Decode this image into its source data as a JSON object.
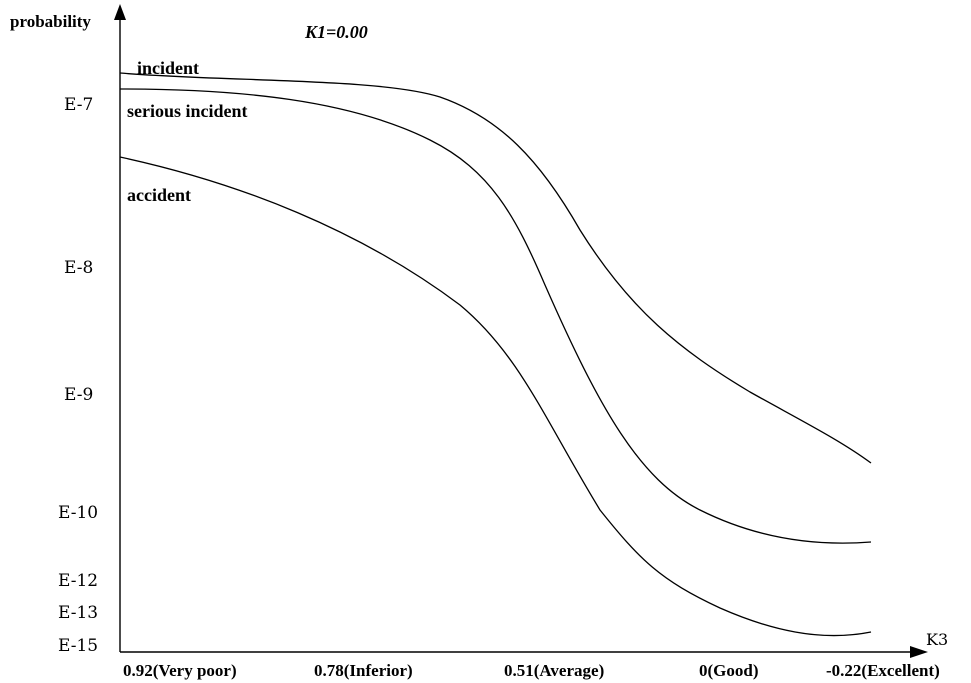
{
  "chart_data": {
    "type": "line",
    "title": "K1=0.00",
    "xlabel": "K3",
    "ylabel": "probability",
    "categories": [
      "0.92(Very poor)",
      "0.78(Inferior)",
      "0.51(Average)",
      "0(Good)",
      "-0.22(Excellent)"
    ],
    "y_tick_labels": [
      "E-7",
      "E-8",
      "E-9",
      "E-10",
      "E-12",
      "E-13",
      "E-15"
    ],
    "grid": false,
    "series": [
      {
        "name": "incident",
        "values": [
          "E-7",
          "E-7",
          "E-7",
          "E-9",
          "E-10"
        ]
      },
      {
        "name": "serious incident",
        "values": [
          "E-7",
          "E-7",
          "E-8",
          "E-10",
          "E-12"
        ]
      },
      {
        "name": "accident",
        "values": [
          "E-7",
          "E-8",
          "E-9",
          "E-13",
          "E-15"
        ]
      }
    ]
  }
}
